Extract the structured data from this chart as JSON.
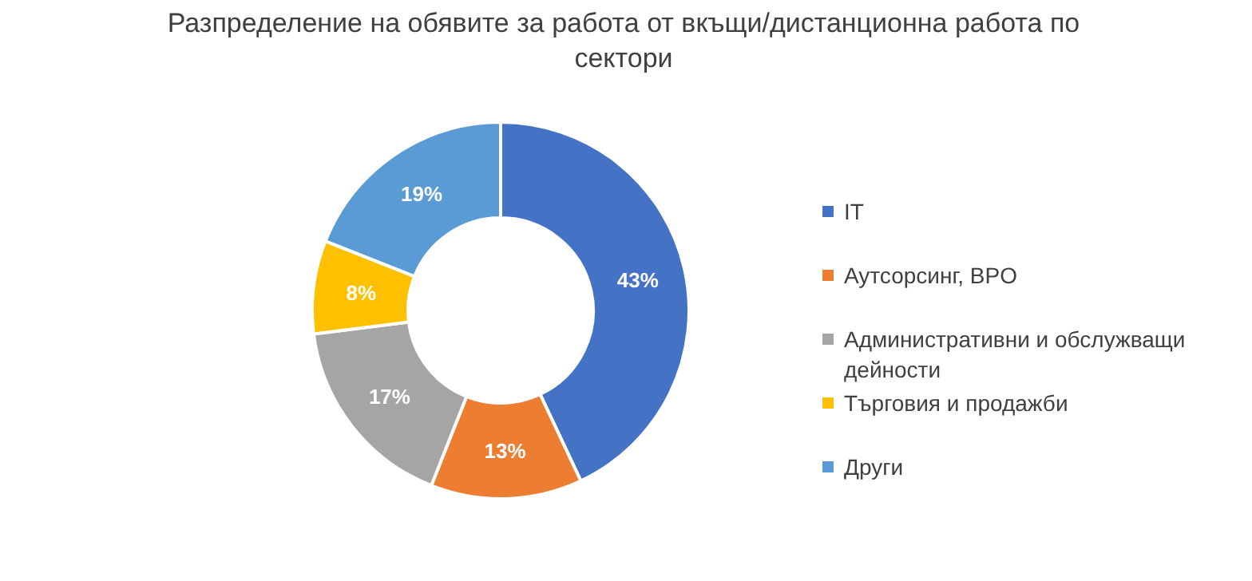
{
  "chart_data": {
    "type": "donut",
    "title": "Разпределение на обявите за работа от вкъщи/дистанционна работа по сектори",
    "categories": [
      "IT",
      "Аутсорсинг, BPO",
      "Административни и обслужващи дейности",
      "Търговия и продажби",
      "Други"
    ],
    "values": [
      43,
      13,
      17,
      8,
      19
    ],
    "value_labels": [
      "43%",
      "13%",
      "17%",
      "8%",
      "19%"
    ],
    "colors": [
      "#4472c4",
      "#ed7d31",
      "#a5a5a5",
      "#ffc000",
      "#5b9bd5"
    ],
    "legend": "right"
  }
}
